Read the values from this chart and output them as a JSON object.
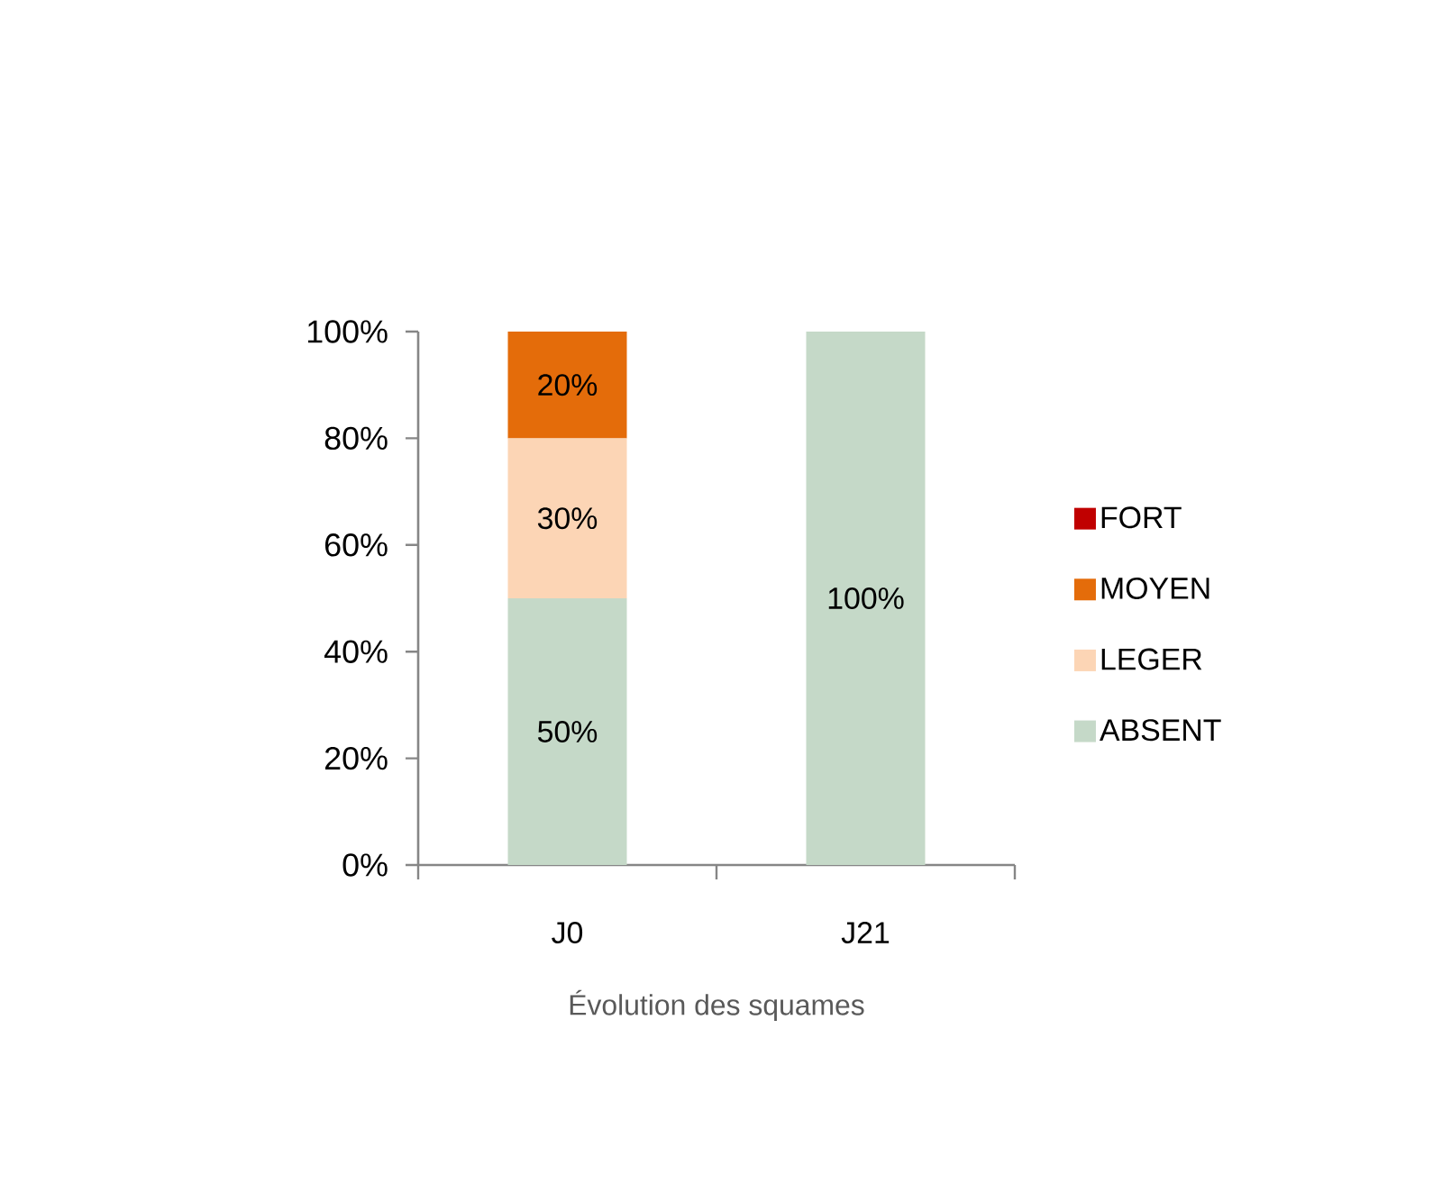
{
  "chart_data": {
    "type": "bar",
    "stacked": true,
    "categories": [
      "J0",
      "J21"
    ],
    "xlabel": "Évolution des squames",
    "ylim": [
      0,
      100
    ],
    "yticks": [
      {
        "value": 0,
        "label": "0%"
      },
      {
        "value": 20,
        "label": "20%"
      },
      {
        "value": 40,
        "label": "40%"
      },
      {
        "value": 60,
        "label": "60%"
      },
      {
        "value": 80,
        "label": "80%"
      },
      {
        "value": 100,
        "label": "100%"
      }
    ],
    "legend": "right",
    "series": [
      {
        "name": "ABSENT",
        "color": "#c5d9c8",
        "values": [
          50,
          100
        ],
        "value_labels": [
          "50%",
          "100%"
        ]
      },
      {
        "name": "LEGER",
        "color": "#fcd5b5",
        "values": [
          30,
          0
        ],
        "value_labels": [
          "30%",
          null
        ]
      },
      {
        "name": "MOYEN",
        "color": "#e46c0a",
        "values": [
          20,
          0
        ],
        "value_labels": [
          "20%",
          null
        ]
      },
      {
        "name": "FORT",
        "color": "#c00000",
        "values": [
          0,
          0
        ],
        "value_labels": [
          null,
          null
        ]
      }
    ]
  }
}
